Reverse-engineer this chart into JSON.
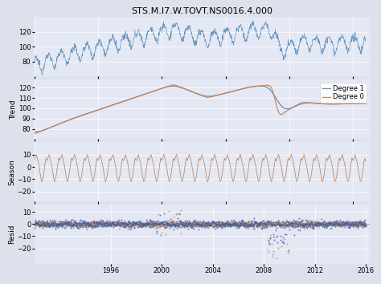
{
  "title": "STS.M.I7.W.TOVT.NS0016.4.000",
  "fig_bg": "#dde1ec",
  "panel_bg": "#e4e8f4",
  "line_color_blue": "#5b8db8",
  "line_color_orange": "#d4804a",
  "dot_color_blue": "#3a60a0",
  "dot_color_orange": "#d4804a",
  "legend_labels": [
    "Degree 1",
    "Degree 0"
  ],
  "grid_color": "white",
  "title_fontsize": 8,
  "label_fontsize": 6.5,
  "tick_fontsize": 6
}
